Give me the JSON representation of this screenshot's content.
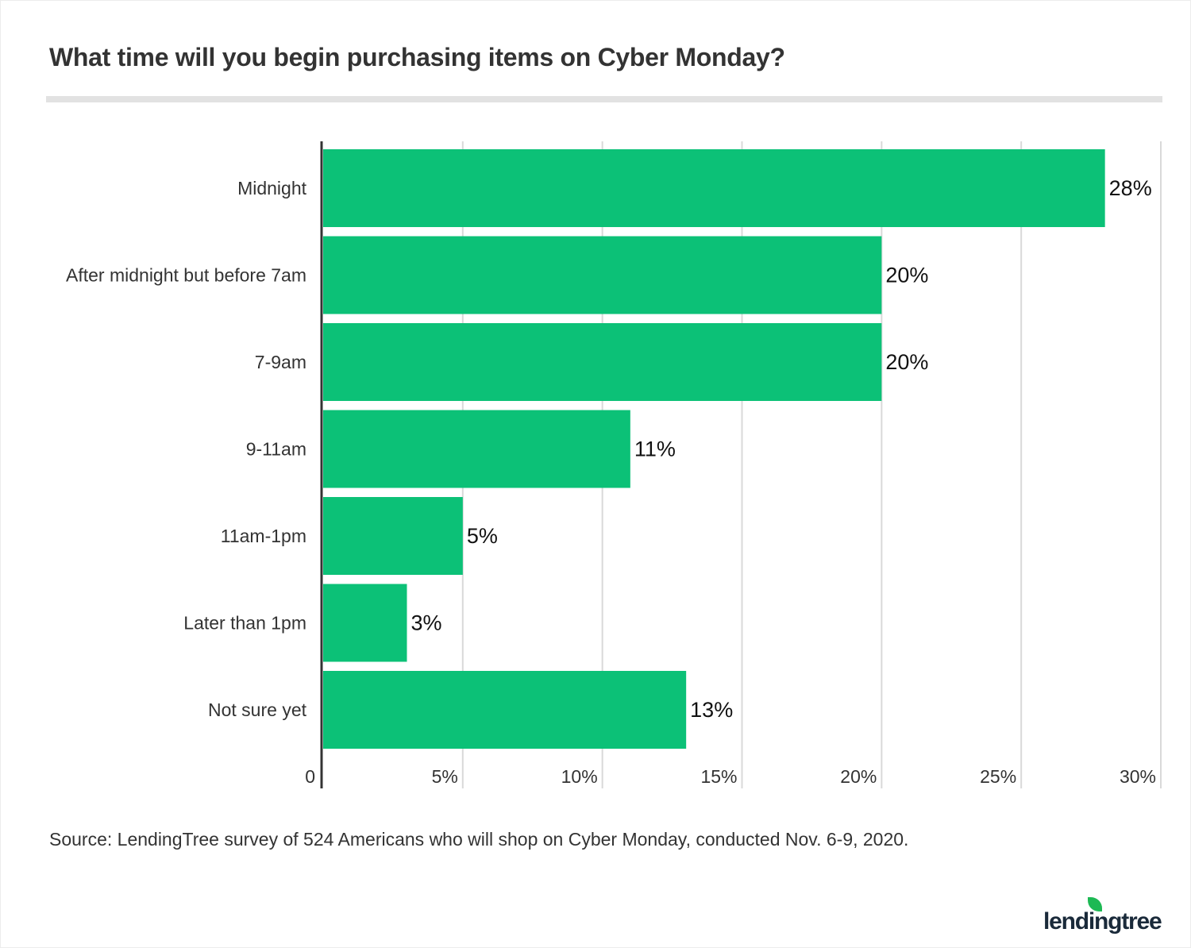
{
  "title": "What time will you begin purchasing items on Cyber Monday?",
  "source": "Source: LendingTree survey of 524 Americans who will shop on Cyber Monday, conducted Nov. 6-9, 2020.",
  "logo": "lendingtree",
  "colors": {
    "bar": "#0cc177",
    "grid": "#d9d9d9",
    "axis": "#333333"
  },
  "chart_data": {
    "type": "bar",
    "orientation": "horizontal",
    "categories": [
      "Midnight",
      "After midnight but before 7am",
      "7-9am",
      "9-11am",
      "11am-1pm",
      "Later than 1pm",
      "Not sure yet"
    ],
    "values": [
      28,
      20,
      20,
      11,
      5,
      3,
      13
    ],
    "data_labels": [
      "28%",
      "20%",
      "20%",
      "11%",
      "5%",
      "3%",
      "13%"
    ],
    "xlim": [
      0,
      30
    ],
    "ticks": [
      0,
      5,
      10,
      15,
      20,
      25,
      30
    ],
    "tick_labels": [
      "0",
      "5%",
      "10%",
      "15%",
      "20%",
      "25%",
      "30%"
    ],
    "grid": true,
    "legend": "none"
  }
}
